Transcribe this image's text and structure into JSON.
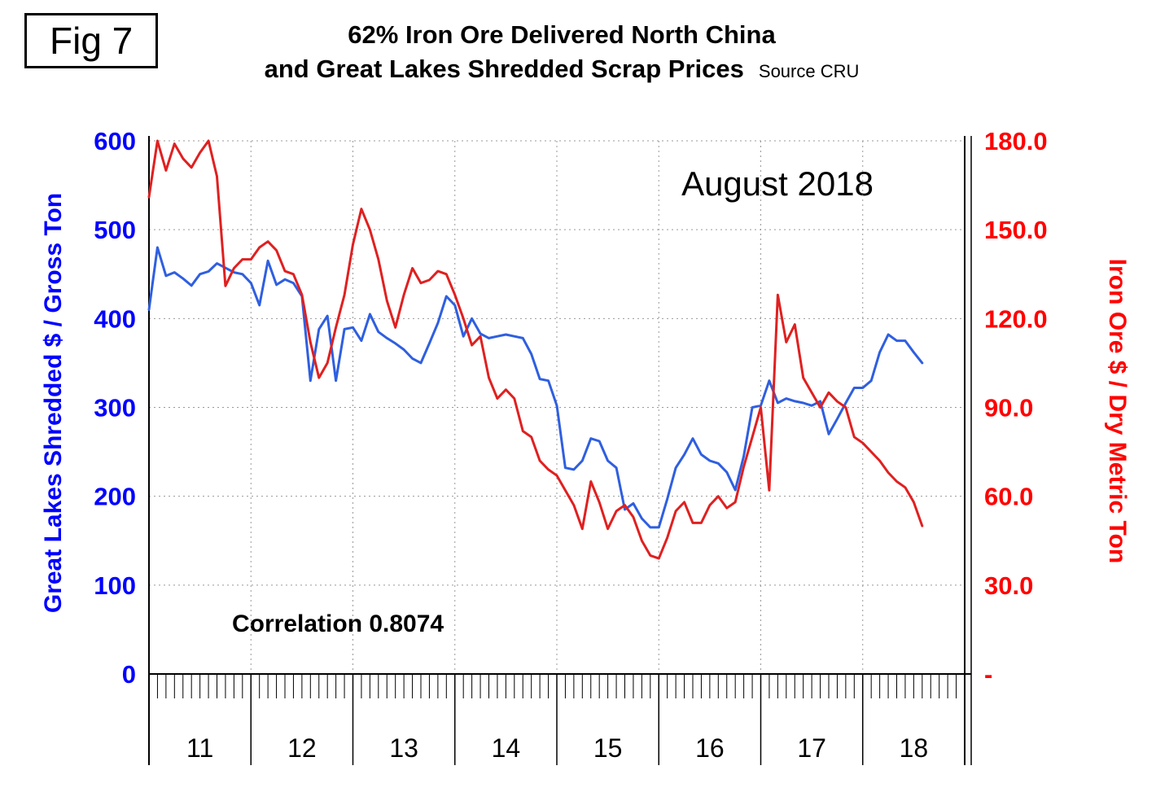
{
  "figure": {
    "label": "Fig 7"
  },
  "title": {
    "line1": "62% Iron Ore Delivered North China",
    "line2": "and Great Lakes Shredded Scrap Prices",
    "source": "Source CRU"
  },
  "annotations": {
    "date_label": "August 2018",
    "correlation": "Correlation 0.8074"
  },
  "chart_data": {
    "type": "line",
    "x_unit": "month",
    "x_start": "2011-01",
    "x_end": "2018-08",
    "x_year_labels": [
      "11",
      "12",
      "13",
      "14",
      "15",
      "16",
      "17",
      "18"
    ],
    "grid": true,
    "legend": "none",
    "correlation": 0.8074,
    "left_axis": {
      "title": "Great Lakes Shredded $ / Gross Ton",
      "min": 0,
      "max": 600,
      "ticks": [
        600,
        500,
        400,
        300,
        200,
        100,
        0
      ],
      "color": "#0000ff"
    },
    "right_axis": {
      "title": "Iron Ore $ / Dry Metric Ton",
      "min": 0,
      "max": 180,
      "tick_labels": [
        "180.0",
        "150.0",
        "120.0",
        "90.0",
        "60.0",
        "30.0",
        "-"
      ],
      "tick_values": [
        180,
        150,
        120,
        90,
        60,
        30,
        0
      ],
      "color": "#ff0000"
    },
    "series": [
      {
        "name": "Great Lakes Shredded Scrap ($/Gross Ton)",
        "axis": "left",
        "color": "#2f5fe0",
        "values": [
          410,
          480,
          448,
          452,
          445,
          437,
          450,
          453,
          462,
          457,
          452,
          450,
          440,
          415,
          465,
          438,
          444,
          440,
          425,
          330,
          388,
          403,
          330,
          388,
          390,
          375,
          405,
          385,
          378,
          372,
          365,
          355,
          350,
          372,
          395,
          425,
          415,
          380,
          400,
          383,
          378,
          380,
          382,
          380,
          378,
          360,
          332,
          330,
          302,
          232,
          230,
          240,
          265,
          262,
          240,
          232,
          185,
          192,
          175,
          165,
          165,
          197,
          232,
          247,
          265,
          247,
          240,
          237,
          227,
          207,
          245,
          300,
          302,
          330,
          305,
          310,
          307,
          305,
          302,
          307,
          270,
          287,
          305,
          322,
          322,
          330,
          362,
          382,
          375,
          375,
          362,
          350
        ]
      },
      {
        "name": "62% Iron Ore Delivered North China ($/Dry Metric Ton)",
        "axis": "right",
        "color": "#e02020",
        "values": [
          161,
          180,
          170,
          179,
          174,
          171,
          176,
          180,
          168,
          131,
          137,
          140,
          140,
          144,
          146,
          143,
          136,
          135,
          128,
          112,
          100,
          105,
          117,
          128,
          145,
          157,
          150,
          140,
          126,
          117,
          128,
          137,
          132,
          133,
          136,
          135,
          128,
          120,
          111,
          114,
          100,
          93,
          96,
          93,
          82,
          80,
          72,
          69,
          67,
          62,
          57,
          49,
          65,
          58,
          49,
          55,
          57,
          53,
          45,
          40,
          39,
          46,
          55,
          58,
          51,
          51,
          57,
          60,
          56,
          58,
          70,
          80,
          90,
          62,
          128,
          112,
          118,
          100,
          95,
          90,
          95,
          92,
          90,
          80,
          78,
          75,
          72,
          68,
          65,
          63,
          58,
          50
        ]
      }
    ]
  }
}
